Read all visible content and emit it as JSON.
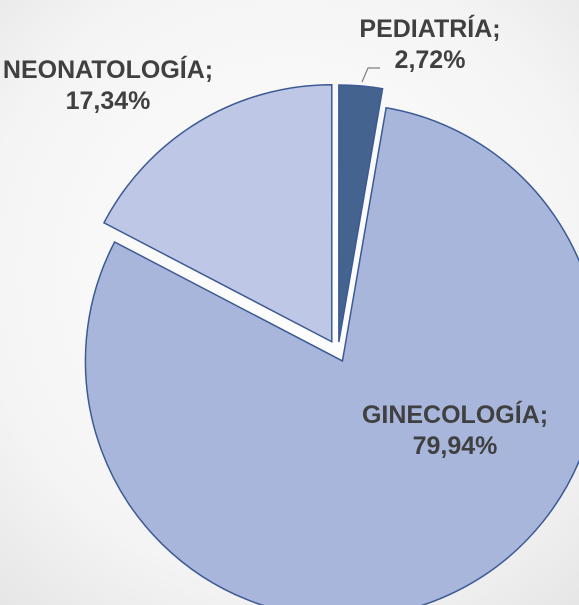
{
  "chart_data": {
    "type": "pie",
    "categories": [
      "PEDIATRÍA",
      "GINECOLOGÍA",
      "NEONATOLOGÍA"
    ],
    "values": [
      2.72,
      79.94,
      17.34
    ],
    "value_labels": [
      "2,72%",
      "79,94%",
      "17,34%"
    ],
    "label_separator": ";",
    "colors": [
      "#44638f",
      "#a8b6dc",
      "#bec8e6"
    ]
  }
}
